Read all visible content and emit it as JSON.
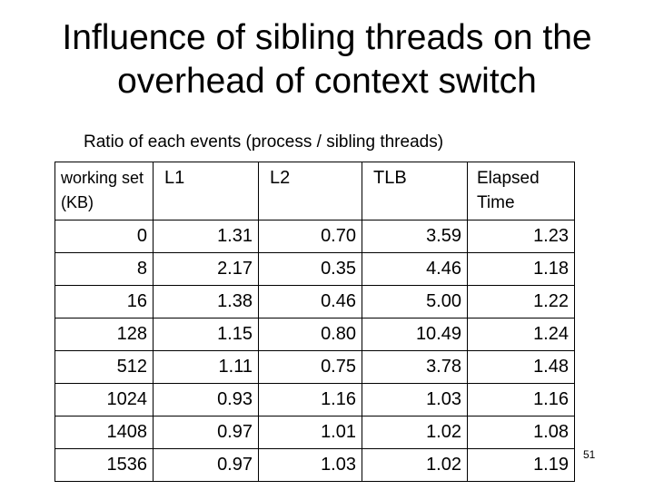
{
  "title": "Influence of sibling threads on the overhead of context switch",
  "subtitle": "Ratio of each events (process / sibling threads)",
  "table": {
    "headers": [
      "working set (KB)",
      "L1",
      "L2",
      "TLB",
      "Elapsed Time"
    ],
    "rows": [
      [
        "0",
        "1.31",
        "0.70",
        "3.59",
        "1.23"
      ],
      [
        "8",
        "2.17",
        "0.35",
        "4.46",
        "1.18"
      ],
      [
        "16",
        "1.38",
        "0.46",
        "5.00",
        "1.22"
      ],
      [
        "128",
        "1.15",
        "0.80",
        "10.49",
        "1.24"
      ],
      [
        "512",
        "1.11",
        "0.75",
        "3.78",
        "1.48"
      ],
      [
        "1024",
        "0.93",
        "1.16",
        "1.03",
        "1.16"
      ],
      [
        "1408",
        "0.97",
        "1.01",
        "1.02",
        "1.08"
      ],
      [
        "1536",
        "0.97",
        "1.03",
        "1.02",
        "1.19"
      ]
    ]
  },
  "page_number": "51"
}
